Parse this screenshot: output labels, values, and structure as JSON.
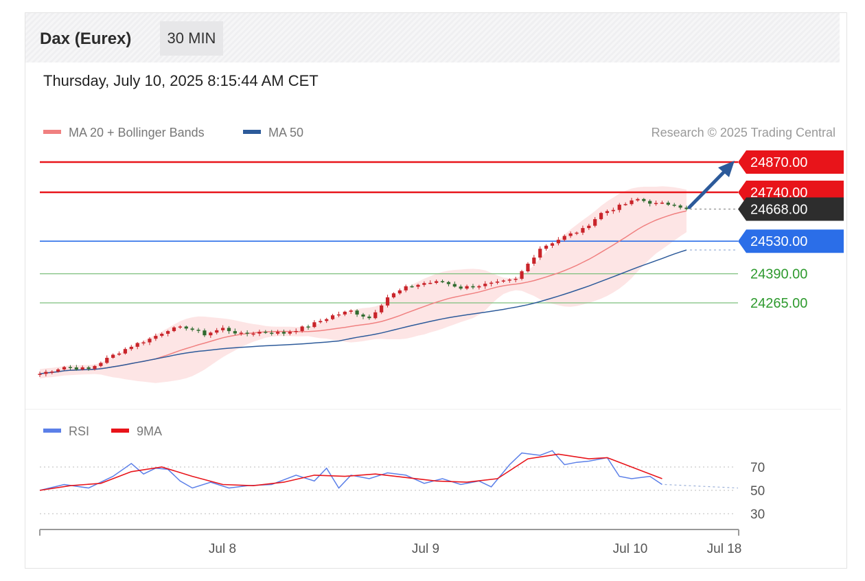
{
  "header": {
    "title": "Dax (Eurex)",
    "interval": "30 MIN",
    "datetime": "Thursday, July 10, 2025 8:15:44 AM CET"
  },
  "legend": {
    "ma20": "MA 20 + Bollinger Bands",
    "ma50": "MA 50",
    "credit": "Research © 2025 Trading Central",
    "rsi": "RSI",
    "rsi_ma": "9MA"
  },
  "colors": {
    "resistance": "#e8141a",
    "support_main": "#2b6ee8",
    "support": "#2e9a2e",
    "current": "#2d2d2d",
    "ma20": "#f08080",
    "ma50": "#2c5a9a",
    "bollinger": "#fde0e0",
    "candle_up": "#c9242a",
    "candle_down": "#2f6b2f",
    "rsi": "#5b7fe8",
    "rsi_ma": "#e8141a",
    "arrow": "#2c5a9a"
  },
  "chart_data": {
    "type": "candlestick",
    "title": "Dax (Eurex)",
    "interval": "30 MIN",
    "ylim": [
      23950,
      24900
    ],
    "x_ticks": [
      "Jul 8",
      "Jul 9",
      "Jul 10",
      "Jul 18"
    ],
    "levels": [
      {
        "label": "24870.00",
        "value": 24870,
        "kind": "resistance"
      },
      {
        "label": "24740.00",
        "value": 24740,
        "kind": "resistance"
      },
      {
        "label": "24668.00",
        "value": 24668,
        "kind": "current"
      },
      {
        "label": "24530.00",
        "value": 24530,
        "kind": "support_main"
      },
      {
        "label": "24390.00",
        "value": 24390,
        "kind": "support"
      },
      {
        "label": "24265.00",
        "value": 24265,
        "kind": "support"
      }
    ],
    "price_path": [
      [
        0,
        23960
      ],
      [
        4,
        23990
      ],
      [
        8,
        23980
      ],
      [
        12,
        24040
      ],
      [
        15,
        24080
      ],
      [
        18,
        24110
      ],
      [
        21,
        24150
      ],
      [
        24,
        24160
      ],
      [
        27,
        24130
      ],
      [
        30,
        24155
      ],
      [
        33,
        24130
      ],
      [
        36,
        24140
      ],
      [
        40,
        24135
      ],
      [
        44,
        24165
      ],
      [
        48,
        24210
      ],
      [
        51,
        24230
      ],
      [
        54,
        24200
      ],
      [
        57,
        24290
      ],
      [
        60,
        24330
      ],
      [
        63,
        24350
      ],
      [
        66,
        24355
      ],
      [
        69,
        24330
      ],
      [
        72,
        24340
      ],
      [
        75,
        24350
      ],
      [
        78,
        24365
      ],
      [
        82,
        24500
      ],
      [
        86,
        24550
      ],
      [
        89,
        24580
      ],
      [
        92,
        24650
      ],
      [
        95,
        24680
      ],
      [
        98,
        24710
      ],
      [
        101,
        24690
      ],
      [
        104,
        24690
      ],
      [
        106,
        24668
      ]
    ],
    "rsi": [
      [
        0,
        50
      ],
      [
        4,
        55
      ],
      [
        8,
        52
      ],
      [
        12,
        62
      ],
      [
        15,
        73
      ],
      [
        17,
        64
      ],
      [
        19,
        69
      ],
      [
        21,
        68
      ],
      [
        23,
        58
      ],
      [
        25,
        52
      ],
      [
        28,
        57
      ],
      [
        31,
        52
      ],
      [
        34,
        54
      ],
      [
        38,
        55
      ],
      [
        42,
        63
      ],
      [
        45,
        58
      ],
      [
        47,
        69
      ],
      [
        49,
        52
      ],
      [
        51,
        63
      ],
      [
        54,
        60
      ],
      [
        57,
        65
      ],
      [
        60,
        63
      ],
      [
        63,
        56
      ],
      [
        66,
        60
      ],
      [
        69,
        55
      ],
      [
        72,
        58
      ],
      [
        74,
        53
      ],
      [
        77,
        72
      ],
      [
        79,
        82
      ],
      [
        82,
        80
      ],
      [
        84,
        84
      ],
      [
        86,
        72
      ],
      [
        88,
        74
      ],
      [
        90,
        75
      ],
      [
        93,
        78
      ],
      [
        95,
        62
      ],
      [
        97,
        60
      ],
      [
        100,
        62
      ],
      [
        102,
        55
      ]
    ],
    "rsi_ma": [
      [
        0,
        50
      ],
      [
        5,
        54
      ],
      [
        10,
        56
      ],
      [
        15,
        66
      ],
      [
        20,
        70
      ],
      [
        25,
        62
      ],
      [
        30,
        55
      ],
      [
        35,
        54
      ],
      [
        40,
        57
      ],
      [
        45,
        63
      ],
      [
        50,
        62
      ],
      [
        55,
        64
      ],
      [
        60,
        61
      ],
      [
        65,
        58
      ],
      [
        70,
        57
      ],
      [
        75,
        60
      ],
      [
        80,
        77
      ],
      [
        85,
        81
      ],
      [
        90,
        77
      ],
      [
        93,
        78
      ],
      [
        97,
        70
      ],
      [
        102,
        60
      ]
    ],
    "rsi_levels": [
      30,
      50,
      70
    ],
    "rsi_range": [
      20,
      90
    ]
  }
}
